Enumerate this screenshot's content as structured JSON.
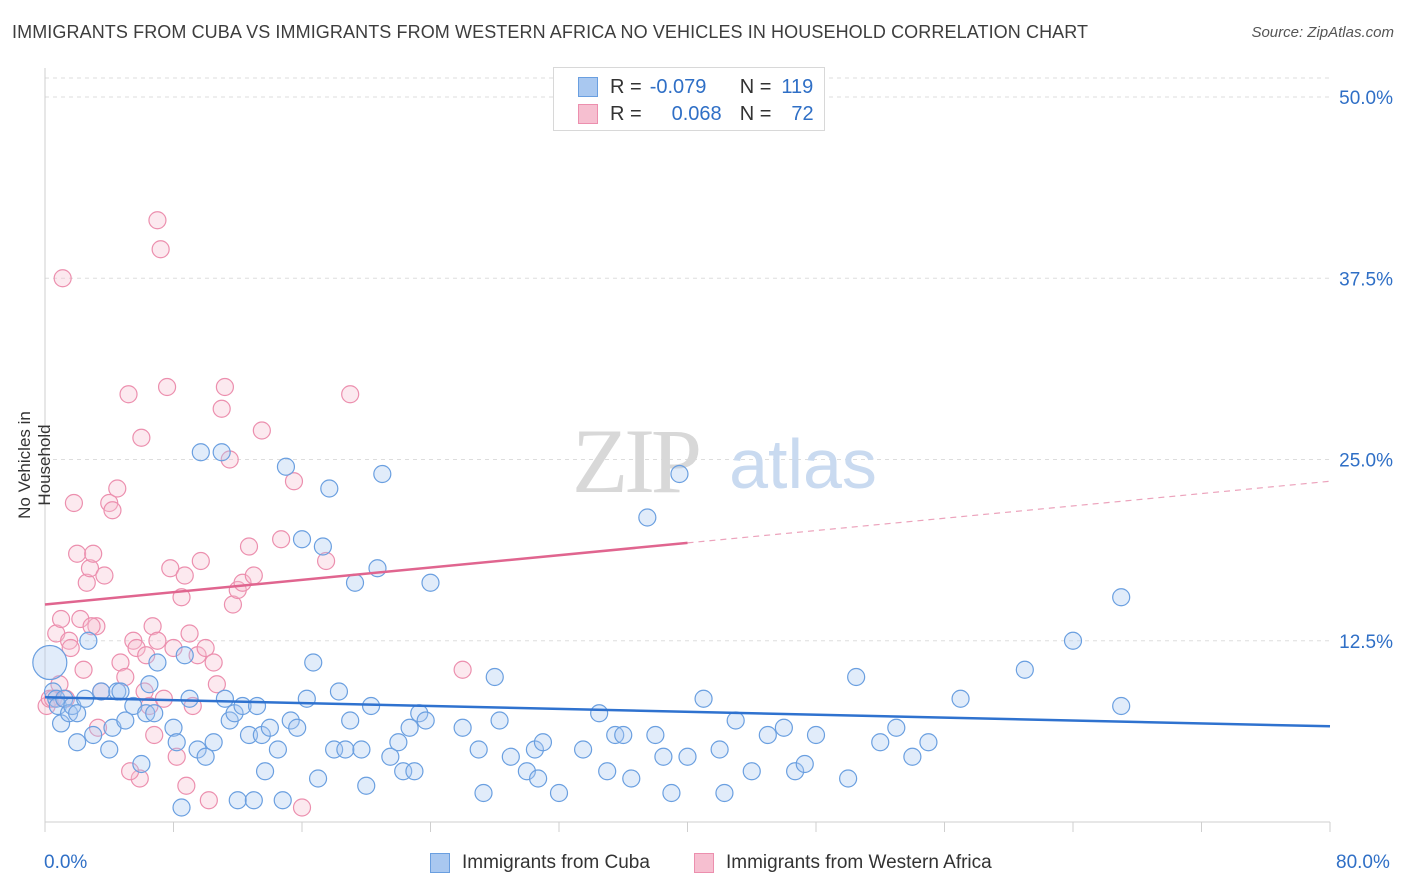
{
  "title": "IMMIGRANTS FROM CUBA VS IMMIGRANTS FROM WESTERN AFRICA NO VEHICLES IN HOUSEHOLD CORRELATION CHART",
  "source": "Source: ZipAtlas.com",
  "watermark": {
    "zip": "ZIP",
    "atlas": "atlas"
  },
  "colors": {
    "blue": "#6a9fe0",
    "blue_fill": "#a9c8f0",
    "blue_line": "#2f72cf",
    "pink": "#ec8fae",
    "pink_fill": "#f6bfd0",
    "pink_line": "#e0658f",
    "axis_text": "#2f6fc6",
    "grid": "#dddddd"
  },
  "legend": {
    "rows": [
      {
        "r_label": "R =",
        "r_value": "-0.079",
        "n_label": "N =",
        "n_value": "119"
      },
      {
        "r_label": "R =",
        "r_value": "0.068",
        "n_label": "N =",
        "n_value": "72"
      }
    ]
  },
  "bottom_legend": {
    "cuba": "Immigrants from Cuba",
    "wafrica": "Immigrants from Western Africa"
  },
  "chart_data": {
    "type": "scatter",
    "title": "IMMIGRANTS FROM CUBA VS IMMIGRANTS FROM WESTERN AFRICA NO VEHICLES IN HOUSEHOLD CORRELATION CHART",
    "xlabel": "",
    "ylabel": "No Vehicles in Household",
    "xlim": [
      0,
      80
    ],
    "ylim": [
      0,
      50
    ],
    "x_tick_labels": [
      "0.0%",
      "80.0%"
    ],
    "y_ticks": [
      12.5,
      25.0,
      37.5,
      50.0
    ],
    "y_tick_labels": [
      "12.5%",
      "25.0%",
      "37.5%",
      "50.0%"
    ],
    "grid": true,
    "legend_position": "top-center",
    "series": [
      {
        "name": "Immigrants from Cuba",
        "trend": {
          "x": [
            0,
            80
          ],
          "y": [
            8.6,
            6.6
          ],
          "solid_to": 80
        },
        "points": [
          [
            0.3,
            11.0
          ],
          [
            0.5,
            9.0
          ],
          [
            0.7,
            8.5
          ],
          [
            0.8,
            8.0
          ],
          [
            1.0,
            6.8
          ],
          [
            1.2,
            8.5
          ],
          [
            1.5,
            7.5
          ],
          [
            1.7,
            8.0
          ],
          [
            2.0,
            7.5
          ],
          [
            2.0,
            5.5
          ],
          [
            2.5,
            8.5
          ],
          [
            2.7,
            12.5
          ],
          [
            3.0,
            6.0
          ],
          [
            3.5,
            9.0
          ],
          [
            4.0,
            5.0
          ],
          [
            4.2,
            6.5
          ],
          [
            4.5,
            9.0
          ],
          [
            4.7,
            9.0
          ],
          [
            5.0,
            7.0
          ],
          [
            5.5,
            8.0
          ],
          [
            6.0,
            4.0
          ],
          [
            6.3,
            7.5
          ],
          [
            6.5,
            9.5
          ],
          [
            6.8,
            7.5
          ],
          [
            7.0,
            11.0
          ],
          [
            8.0,
            6.5
          ],
          [
            8.2,
            5.5
          ],
          [
            8.5,
            1.0
          ],
          [
            8.7,
            11.5
          ],
          [
            9.0,
            8.5
          ],
          [
            9.5,
            5.0
          ],
          [
            9.7,
            25.5
          ],
          [
            10.0,
            4.5
          ],
          [
            10.5,
            5.5
          ],
          [
            11.0,
            25.5
          ],
          [
            11.2,
            8.5
          ],
          [
            11.5,
            7.0
          ],
          [
            11.8,
            7.5
          ],
          [
            12.0,
            1.5
          ],
          [
            12.3,
            8.0
          ],
          [
            12.7,
            6.0
          ],
          [
            13.0,
            1.5
          ],
          [
            13.2,
            8.0
          ],
          [
            13.5,
            6.0
          ],
          [
            13.7,
            3.5
          ],
          [
            14.0,
            6.5
          ],
          [
            14.5,
            5.0
          ],
          [
            14.8,
            1.5
          ],
          [
            15.0,
            24.5
          ],
          [
            15.3,
            7.0
          ],
          [
            15.7,
            6.5
          ],
          [
            16.0,
            19.5
          ],
          [
            16.3,
            8.5
          ],
          [
            16.7,
            11.0
          ],
          [
            17.0,
            3.0
          ],
          [
            17.3,
            19.0
          ],
          [
            17.7,
            23.0
          ],
          [
            18.0,
            5.0
          ],
          [
            18.3,
            9.0
          ],
          [
            18.7,
            5.0
          ],
          [
            19.0,
            7.0
          ],
          [
            19.3,
            16.5
          ],
          [
            19.7,
            5.0
          ],
          [
            20.0,
            2.5
          ],
          [
            20.3,
            8.0
          ],
          [
            20.7,
            17.5
          ],
          [
            21.0,
            24.0
          ],
          [
            21.5,
            4.5
          ],
          [
            22.0,
            5.5
          ],
          [
            22.3,
            3.5
          ],
          [
            22.7,
            6.5
          ],
          [
            23.0,
            3.5
          ],
          [
            23.3,
            7.5
          ],
          [
            23.7,
            7.0
          ],
          [
            24.0,
            16.5
          ],
          [
            26.0,
            6.5
          ],
          [
            27.0,
            5.0
          ],
          [
            27.3,
            2.0
          ],
          [
            28.0,
            10.0
          ],
          [
            28.3,
            7.0
          ],
          [
            29.0,
            4.5
          ],
          [
            30.0,
            3.5
          ],
          [
            30.5,
            5.0
          ],
          [
            30.7,
            3.0
          ],
          [
            31.0,
            5.5
          ],
          [
            32.0,
            2.0
          ],
          [
            33.5,
            5.0
          ],
          [
            34.5,
            7.5
          ],
          [
            35.0,
            3.5
          ],
          [
            35.5,
            6.0
          ],
          [
            36.0,
            6.0
          ],
          [
            36.5,
            3.0
          ],
          [
            37.5,
            21.0
          ],
          [
            38.0,
            6.0
          ],
          [
            38.5,
            4.5
          ],
          [
            39.0,
            2.0
          ],
          [
            39.5,
            24.0
          ],
          [
            40.0,
            4.5
          ],
          [
            41.0,
            8.5
          ],
          [
            42.0,
            5.0
          ],
          [
            42.3,
            2.0
          ],
          [
            43.0,
            7.0
          ],
          [
            44.0,
            3.5
          ],
          [
            45.0,
            6.0
          ],
          [
            46.0,
            6.5
          ],
          [
            46.7,
            3.5
          ],
          [
            47.3,
            4.0
          ],
          [
            48.0,
            6.0
          ],
          [
            50.0,
            3.0
          ],
          [
            50.5,
            10.0
          ],
          [
            52.0,
            5.5
          ],
          [
            53.0,
            6.5
          ],
          [
            54.0,
            4.5
          ],
          [
            55.0,
            5.5
          ],
          [
            57.0,
            8.5
          ],
          [
            61.0,
            10.5
          ],
          [
            64.0,
            12.5
          ],
          [
            67.0,
            8.0
          ],
          [
            67.0,
            15.5
          ]
        ]
      },
      {
        "name": "Immigrants from Western Africa",
        "trend": {
          "x": [
            0,
            80
          ],
          "y": [
            15.0,
            23.5
          ],
          "solid_to": 40
        },
        "points": [
          [
            0.1,
            8.0
          ],
          [
            0.3,
            8.5
          ],
          [
            0.5,
            8.5
          ],
          [
            0.7,
            13.0
          ],
          [
            0.9,
            9.5
          ],
          [
            1.0,
            14.0
          ],
          [
            1.1,
            37.5
          ],
          [
            1.3,
            8.5
          ],
          [
            1.5,
            12.5
          ],
          [
            1.6,
            12.0
          ],
          [
            1.8,
            22.0
          ],
          [
            2.0,
            18.5
          ],
          [
            2.2,
            14.0
          ],
          [
            2.4,
            10.5
          ],
          [
            2.6,
            16.5
          ],
          [
            2.8,
            17.5
          ],
          [
            3.0,
            18.5
          ],
          [
            3.2,
            13.5
          ],
          [
            3.5,
            9.0
          ],
          [
            3.7,
            17.0
          ],
          [
            4.0,
            22.0
          ],
          [
            4.2,
            21.5
          ],
          [
            4.5,
            23.0
          ],
          [
            4.7,
            11.0
          ],
          [
            5.0,
            10.0
          ],
          [
            5.2,
            29.5
          ],
          [
            5.5,
            12.5
          ],
          [
            5.7,
            12.0
          ],
          [
            5.9,
            3.0
          ],
          [
            6.0,
            26.5
          ],
          [
            6.2,
            9.0
          ],
          [
            6.3,
            11.5
          ],
          [
            6.5,
            8.0
          ],
          [
            6.7,
            13.5
          ],
          [
            7.0,
            12.5
          ],
          [
            7.2,
            39.5
          ],
          [
            7.4,
            8.5
          ],
          [
            7.6,
            30.0
          ],
          [
            7.8,
            17.5
          ],
          [
            8.0,
            12.0
          ],
          [
            8.2,
            4.5
          ],
          [
            8.5,
            15.5
          ],
          [
            8.7,
            17.0
          ],
          [
            9.0,
            13.0
          ],
          [
            9.2,
            8.0
          ],
          [
            9.5,
            11.5
          ],
          [
            9.7,
            18.0
          ],
          [
            10.0,
            12.0
          ],
          [
            10.2,
            1.5
          ],
          [
            10.5,
            11.0
          ],
          [
            10.7,
            9.5
          ],
          [
            11.0,
            28.5
          ],
          [
            11.2,
            30.0
          ],
          [
            11.5,
            25.0
          ],
          [
            11.7,
            15.0
          ],
          [
            12.0,
            16.0
          ],
          [
            12.3,
            16.5
          ],
          [
            12.7,
            19.0
          ],
          [
            13.0,
            17.0
          ],
          [
            13.5,
            27.0
          ],
          [
            14.7,
            19.5
          ],
          [
            15.5,
            23.5
          ],
          [
            16.0,
            1.0
          ],
          [
            17.5,
            18.0
          ],
          [
            19.0,
            29.5
          ],
          [
            26.0,
            10.5
          ],
          [
            7.0,
            41.5
          ],
          [
            6.8,
            6.0
          ],
          [
            5.3,
            3.5
          ],
          [
            8.8,
            2.5
          ],
          [
            3.3,
            6.5
          ],
          [
            2.9,
            13.5
          ]
        ]
      }
    ]
  }
}
